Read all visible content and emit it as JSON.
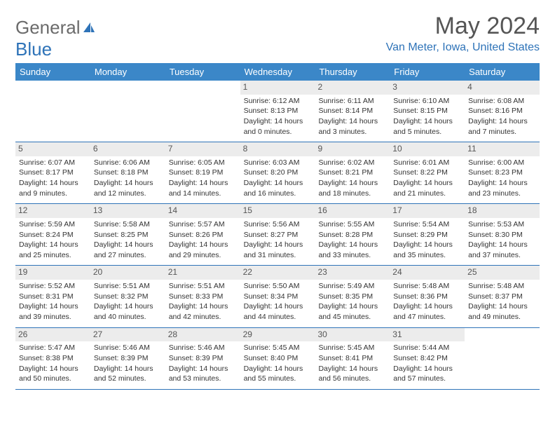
{
  "logo": {
    "text1": "General",
    "text2": "Blue"
  },
  "title": "May 2024",
  "location": "Van Meter, Iowa, United States",
  "colors": {
    "headerBg": "#3b87c8",
    "accent": "#2e73b8",
    "dayNumBg": "#ececec",
    "text": "#333333",
    "logoGray": "#6b6b6b"
  },
  "dayNames": [
    "Sunday",
    "Monday",
    "Tuesday",
    "Wednesday",
    "Thursday",
    "Friday",
    "Saturday"
  ],
  "weeks": [
    [
      null,
      null,
      null,
      {
        "n": "1",
        "sr": "Sunrise: 6:12 AM",
        "ss": "Sunset: 8:13 PM",
        "d1": "Daylight: 14 hours",
        "d2": "and 0 minutes."
      },
      {
        "n": "2",
        "sr": "Sunrise: 6:11 AM",
        "ss": "Sunset: 8:14 PM",
        "d1": "Daylight: 14 hours",
        "d2": "and 3 minutes."
      },
      {
        "n": "3",
        "sr": "Sunrise: 6:10 AM",
        "ss": "Sunset: 8:15 PM",
        "d1": "Daylight: 14 hours",
        "d2": "and 5 minutes."
      },
      {
        "n": "4",
        "sr": "Sunrise: 6:08 AM",
        "ss": "Sunset: 8:16 PM",
        "d1": "Daylight: 14 hours",
        "d2": "and 7 minutes."
      }
    ],
    [
      {
        "n": "5",
        "sr": "Sunrise: 6:07 AM",
        "ss": "Sunset: 8:17 PM",
        "d1": "Daylight: 14 hours",
        "d2": "and 9 minutes."
      },
      {
        "n": "6",
        "sr": "Sunrise: 6:06 AM",
        "ss": "Sunset: 8:18 PM",
        "d1": "Daylight: 14 hours",
        "d2": "and 12 minutes."
      },
      {
        "n": "7",
        "sr": "Sunrise: 6:05 AM",
        "ss": "Sunset: 8:19 PM",
        "d1": "Daylight: 14 hours",
        "d2": "and 14 minutes."
      },
      {
        "n": "8",
        "sr": "Sunrise: 6:03 AM",
        "ss": "Sunset: 8:20 PM",
        "d1": "Daylight: 14 hours",
        "d2": "and 16 minutes."
      },
      {
        "n": "9",
        "sr": "Sunrise: 6:02 AM",
        "ss": "Sunset: 8:21 PM",
        "d1": "Daylight: 14 hours",
        "d2": "and 18 minutes."
      },
      {
        "n": "10",
        "sr": "Sunrise: 6:01 AM",
        "ss": "Sunset: 8:22 PM",
        "d1": "Daylight: 14 hours",
        "d2": "and 21 minutes."
      },
      {
        "n": "11",
        "sr": "Sunrise: 6:00 AM",
        "ss": "Sunset: 8:23 PM",
        "d1": "Daylight: 14 hours",
        "d2": "and 23 minutes."
      }
    ],
    [
      {
        "n": "12",
        "sr": "Sunrise: 5:59 AM",
        "ss": "Sunset: 8:24 PM",
        "d1": "Daylight: 14 hours",
        "d2": "and 25 minutes."
      },
      {
        "n": "13",
        "sr": "Sunrise: 5:58 AM",
        "ss": "Sunset: 8:25 PM",
        "d1": "Daylight: 14 hours",
        "d2": "and 27 minutes."
      },
      {
        "n": "14",
        "sr": "Sunrise: 5:57 AM",
        "ss": "Sunset: 8:26 PM",
        "d1": "Daylight: 14 hours",
        "d2": "and 29 minutes."
      },
      {
        "n": "15",
        "sr": "Sunrise: 5:56 AM",
        "ss": "Sunset: 8:27 PM",
        "d1": "Daylight: 14 hours",
        "d2": "and 31 minutes."
      },
      {
        "n": "16",
        "sr": "Sunrise: 5:55 AM",
        "ss": "Sunset: 8:28 PM",
        "d1": "Daylight: 14 hours",
        "d2": "and 33 minutes."
      },
      {
        "n": "17",
        "sr": "Sunrise: 5:54 AM",
        "ss": "Sunset: 8:29 PM",
        "d1": "Daylight: 14 hours",
        "d2": "and 35 minutes."
      },
      {
        "n": "18",
        "sr": "Sunrise: 5:53 AM",
        "ss": "Sunset: 8:30 PM",
        "d1": "Daylight: 14 hours",
        "d2": "and 37 minutes."
      }
    ],
    [
      {
        "n": "19",
        "sr": "Sunrise: 5:52 AM",
        "ss": "Sunset: 8:31 PM",
        "d1": "Daylight: 14 hours",
        "d2": "and 39 minutes."
      },
      {
        "n": "20",
        "sr": "Sunrise: 5:51 AM",
        "ss": "Sunset: 8:32 PM",
        "d1": "Daylight: 14 hours",
        "d2": "and 40 minutes."
      },
      {
        "n": "21",
        "sr": "Sunrise: 5:51 AM",
        "ss": "Sunset: 8:33 PM",
        "d1": "Daylight: 14 hours",
        "d2": "and 42 minutes."
      },
      {
        "n": "22",
        "sr": "Sunrise: 5:50 AM",
        "ss": "Sunset: 8:34 PM",
        "d1": "Daylight: 14 hours",
        "d2": "and 44 minutes."
      },
      {
        "n": "23",
        "sr": "Sunrise: 5:49 AM",
        "ss": "Sunset: 8:35 PM",
        "d1": "Daylight: 14 hours",
        "d2": "and 45 minutes."
      },
      {
        "n": "24",
        "sr": "Sunrise: 5:48 AM",
        "ss": "Sunset: 8:36 PM",
        "d1": "Daylight: 14 hours",
        "d2": "and 47 minutes."
      },
      {
        "n": "25",
        "sr": "Sunrise: 5:48 AM",
        "ss": "Sunset: 8:37 PM",
        "d1": "Daylight: 14 hours",
        "d2": "and 49 minutes."
      }
    ],
    [
      {
        "n": "26",
        "sr": "Sunrise: 5:47 AM",
        "ss": "Sunset: 8:38 PM",
        "d1": "Daylight: 14 hours",
        "d2": "and 50 minutes."
      },
      {
        "n": "27",
        "sr": "Sunrise: 5:46 AM",
        "ss": "Sunset: 8:39 PM",
        "d1": "Daylight: 14 hours",
        "d2": "and 52 minutes."
      },
      {
        "n": "28",
        "sr": "Sunrise: 5:46 AM",
        "ss": "Sunset: 8:39 PM",
        "d1": "Daylight: 14 hours",
        "d2": "and 53 minutes."
      },
      {
        "n": "29",
        "sr": "Sunrise: 5:45 AM",
        "ss": "Sunset: 8:40 PM",
        "d1": "Daylight: 14 hours",
        "d2": "and 55 minutes."
      },
      {
        "n": "30",
        "sr": "Sunrise: 5:45 AM",
        "ss": "Sunset: 8:41 PM",
        "d1": "Daylight: 14 hours",
        "d2": "and 56 minutes."
      },
      {
        "n": "31",
        "sr": "Sunrise: 5:44 AM",
        "ss": "Sunset: 8:42 PM",
        "d1": "Daylight: 14 hours",
        "d2": "and 57 minutes."
      },
      null
    ]
  ]
}
